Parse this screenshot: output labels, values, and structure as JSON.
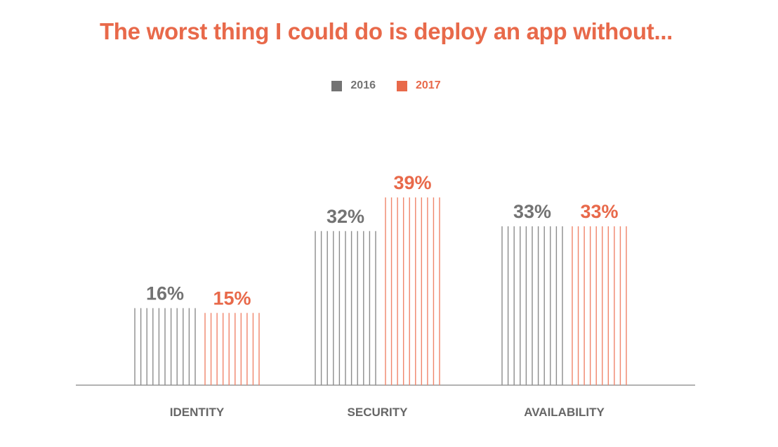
{
  "chart_data": {
    "type": "bar",
    "title": "The worst thing I could do is deploy an app without...",
    "categories": [
      "IDENTITY",
      "SECURITY",
      "AVAILABILITY"
    ],
    "series": [
      {
        "name": "2016",
        "color": "#737373",
        "values": [
          16,
          32,
          33
        ],
        "labels": [
          "16%",
          "32%",
          "33%"
        ]
      },
      {
        "name": "2017",
        "color": "#e8694a",
        "values": [
          15,
          39,
          33
        ],
        "labels": [
          "15%",
          "39%",
          "33%"
        ]
      }
    ],
    "xlabel": "",
    "ylabel": "",
    "ylim": [
      0,
      39
    ],
    "grid": false,
    "legend": "top-center",
    "unit": "%"
  },
  "colors": {
    "title": "#e8694a",
    "axis": "#999999"
  }
}
